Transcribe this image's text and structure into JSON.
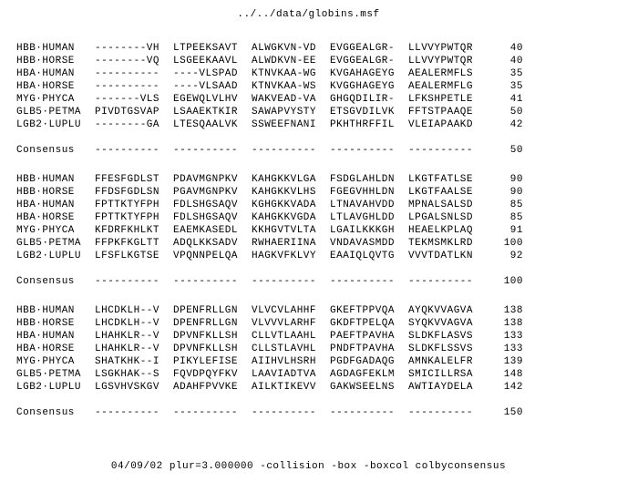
{
  "title": "../../data/globins.msf",
  "footer": "04/09/02 plur=3.000000 -collision -box -boxcol colbyconsensus",
  "blocks": [
    {
      "rows": [
        {
          "label": "HBB·HUMAN",
          "cols": [
            "--------VH",
            "LTPEEKSAVT",
            "ALWGKVN-VD",
            "EVGGEALGR-",
            "LLVVYPWTQR"
          ],
          "num": "40"
        },
        {
          "label": "HBB·HORSE",
          "cols": [
            "--------VQ",
            "LSGEEKAAVL",
            "ALWDKVN-EE",
            "EVGGEALGR-",
            "LLVVYPWTQR"
          ],
          "num": "40"
        },
        {
          "label": "HBA·HUMAN",
          "cols": [
            "----------",
            "----VLSPAD",
            "KTNVKAA-WG",
            "KVGAHAGEYG",
            "AEALERMFLS"
          ],
          "num": "35"
        },
        {
          "label": "HBA·HORSE",
          "cols": [
            "----------",
            "----VLSAAD",
            "KTNVKAA-WS",
            "KVGGHAGEYG",
            "AEALERMFLG"
          ],
          "num": "35"
        },
        {
          "label": "MYG·PHYCA",
          "cols": [
            "-------VLS",
            "EGEWQLVLHV",
            "WAKVEAD-VA",
            "GHGQDILIR-",
            "LFKSHPETLE"
          ],
          "num": "41"
        },
        {
          "label": "GLB5·PETMA",
          "cols": [
            "PIVDTGSVAP",
            "LSAAEKTKIR",
            "SAWAPVYSTY",
            "ETSGVDILVK",
            "FFTSTPAAQE"
          ],
          "num": "50"
        },
        {
          "label": "LGB2·LUPLU",
          "cols": [
            "--------GA",
            "LTESQAALVK",
            "SSWEEFNANI",
            "PKHTHRFFIL",
            "VLEIAPAAKD"
          ],
          "num": "42"
        }
      ],
      "consensus": {
        "label": "Consensus",
        "cols": [
          "----------",
          "----------",
          "----------",
          "----------",
          "----------"
        ],
        "num": "50"
      }
    },
    {
      "rows": [
        {
          "label": "HBB·HUMAN",
          "cols": [
            "FFESFGDLST",
            "PDAVMGNPKV",
            "KAHGKKVLGA",
            "FSDGLAHLDN",
            "LKGTFATLSE"
          ],
          "num": "90"
        },
        {
          "label": "HBB·HORSE",
          "cols": [
            "FFDSFGDLSN",
            "PGAVMGNPKV",
            "KAHGKKVLHS",
            "FGEGVHHLDN",
            "LKGTFAALSE"
          ],
          "num": "90"
        },
        {
          "label": "HBA·HUMAN",
          "cols": [
            "FPTTKTYFPH",
            "FDLSHGSAQV",
            "KGHGKKVADA",
            "LTNAVAHVDD",
            "MPNALSALSD"
          ],
          "num": "85"
        },
        {
          "label": "HBA·HORSE",
          "cols": [
            "FPTTKTYFPH",
            "FDLSHGSAQV",
            "KAHGKKVGDA",
            "LTLAVGHLDD",
            "LPGALSNLSD"
          ],
          "num": "85"
        },
        {
          "label": "MYG·PHYCA",
          "cols": [
            "KFDRFKHLKT",
            "EAEMKASEDL",
            "KKHGVTVLTA",
            "LGAILKKKGH",
            "HEAELKPLAQ"
          ],
          "num": "91"
        },
        {
          "label": "GLB5·PETMA",
          "cols": [
            "FFPKFKGLTT",
            "ADQLKKSADV",
            "RWHAERIINA",
            "VNDAVASMDD",
            "TEKMSMKLRD"
          ],
          "num": "100"
        },
        {
          "label": "LGB2·LUPLU",
          "cols": [
            "LFSFLKGTSE",
            "VPQNNPELQA",
            "HAGKVFKLVY",
            "EAAIQLQVTG",
            "VVVTDATLKN"
          ],
          "num": "92"
        }
      ],
      "consensus": {
        "label": "Consensus",
        "cols": [
          "----------",
          "----------",
          "----------",
          "----------",
          "----------"
        ],
        "num": "100"
      }
    },
    {
      "rows": [
        {
          "label": "HBB·HUMAN",
          "cols": [
            "LHCDKLH--V",
            "DPENFRLLGN",
            "VLVCVLAHHF",
            "GKEFTPPVQA",
            "AYQKVVAGVA"
          ],
          "num": "138"
        },
        {
          "label": "HBB·HORSE",
          "cols": [
            "LHCDKLH--V",
            "DPENFRLLGN",
            "VLVVVLARHF",
            "GKDFTPELQA",
            "SYQKVVAGVA"
          ],
          "num": "138"
        },
        {
          "label": "HBA·HUMAN",
          "cols": [
            "LHAHKLR--V",
            "DPVNFKLLSH",
            "CLLVTLAAHL",
            "PAEFTPAVHA",
            "SLDKFLASVS"
          ],
          "num": "133"
        },
        {
          "label": "HBA·HORSE",
          "cols": [
            "LHAHKLR--V",
            "DPVNFKLLSH",
            "CLLSTLAVHL",
            "PNDFTPAVHA",
            "SLDKFLSSVS"
          ],
          "num": "133"
        },
        {
          "label": "MYG·PHYCA",
          "cols": [
            "SHATKHK--I",
            "PIKYLEFISE",
            "AIIHVLHSRH",
            "PGDFGADAQG",
            "AMNKALELFR"
          ],
          "num": "139"
        },
        {
          "label": "GLB5·PETMA",
          "cols": [
            "LSGKHAK--S",
            "FQVDPQYFKV",
            "LAAVIADTVA",
            "AGDAGFEKLM",
            "SMICILLRSA"
          ],
          "num": "148"
        },
        {
          "label": "LGB2·LUPLU",
          "cols": [
            "LGSVHVSKGV",
            "ADAHFPVVKE",
            "AILKTIKEVV",
            "GAKWSEELNS",
            "AWTIAYDELA"
          ],
          "num": "142"
        }
      ],
      "consensus": {
        "label": "Consensus",
        "cols": [
          "----------",
          "----------",
          "----------",
          "----------",
          "----------"
        ],
        "num": "150"
      }
    }
  ]
}
